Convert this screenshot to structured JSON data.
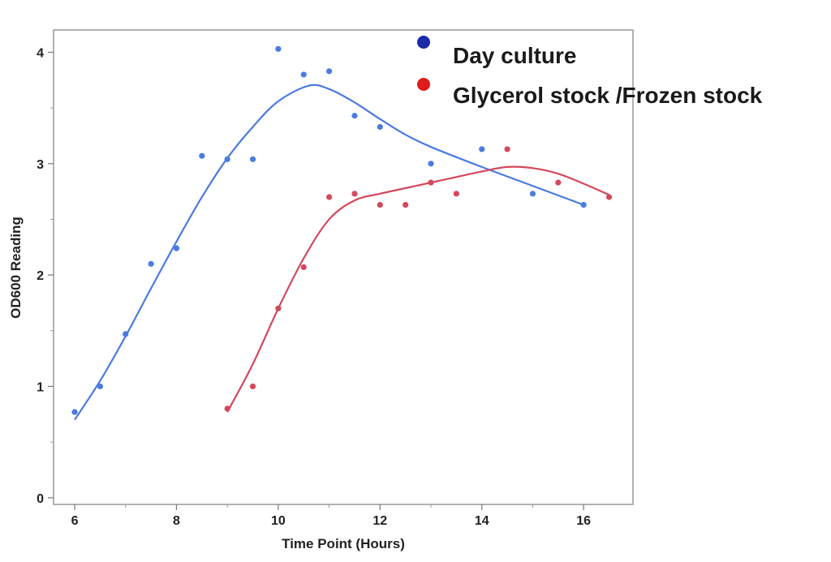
{
  "chart_data": {
    "type": "scatter",
    "title": "",
    "xlabel": "Time Point (Hours)",
    "ylabel": "OD600 Reading",
    "xlim": [
      5.585,
      16.97
    ],
    "ylim": [
      -0.06,
      4.2
    ],
    "xticks": [
      6,
      8,
      10,
      12,
      14,
      16
    ],
    "xminor": [
      7,
      9,
      11,
      13,
      15
    ],
    "yticks": [
      0,
      1,
      2,
      3,
      4
    ],
    "yminor": [
      0.5,
      1.5,
      2.5,
      3.5
    ],
    "grid": false,
    "legend_placement": "top-right",
    "series": [
      {
        "name": "Day culture",
        "legend_color": "#1a2aa8",
        "color": "#4a7be0",
        "points": [
          [
            6,
            0.77
          ],
          [
            6.5,
            1.0
          ],
          [
            7,
            1.47
          ],
          [
            7.5,
            2.1
          ],
          [
            8,
            2.24
          ],
          [
            8.5,
            3.07
          ],
          [
            9,
            3.04
          ],
          [
            9.5,
            3.04
          ],
          [
            10,
            4.03
          ],
          [
            10.5,
            3.8
          ],
          [
            11,
            3.83
          ],
          [
            11.5,
            3.43
          ],
          [
            12,
            3.33
          ],
          [
            13,
            3.0
          ],
          [
            14,
            3.13
          ],
          [
            15,
            2.73
          ],
          [
            16,
            2.63
          ]
        ],
        "fit": [
          [
            6,
            0.7
          ],
          [
            6.5,
            1.05
          ],
          [
            7,
            1.45
          ],
          [
            7.5,
            1.88
          ],
          [
            8,
            2.3
          ],
          [
            8.5,
            2.7
          ],
          [
            9,
            3.05
          ],
          [
            9.5,
            3.33
          ],
          [
            10,
            3.56
          ],
          [
            10.6,
            3.7
          ],
          [
            11,
            3.67
          ],
          [
            11.5,
            3.55
          ],
          [
            12,
            3.4
          ],
          [
            12.5,
            3.26
          ],
          [
            13,
            3.15
          ],
          [
            14,
            2.97
          ],
          [
            15,
            2.8
          ],
          [
            16,
            2.63
          ]
        ]
      },
      {
        "name": "Glycerol stock /Frozen stock",
        "legend_color": "#e01b1b",
        "color": "#d4485c",
        "points": [
          [
            9,
            0.8
          ],
          [
            9.5,
            1.0
          ],
          [
            10,
            1.7
          ],
          [
            10.5,
            2.07
          ],
          [
            11,
            2.7
          ],
          [
            11.5,
            2.73
          ],
          [
            12,
            2.63
          ],
          [
            12.5,
            2.63
          ],
          [
            13,
            2.83
          ],
          [
            13.5,
            2.73
          ],
          [
            14.5,
            3.13
          ],
          [
            15.5,
            2.83
          ],
          [
            16.5,
            2.7
          ]
        ],
        "fit": [
          [
            9,
            0.77
          ],
          [
            9.5,
            1.2
          ],
          [
            10,
            1.7
          ],
          [
            10.5,
            2.15
          ],
          [
            11,
            2.5
          ],
          [
            11.5,
            2.67
          ],
          [
            12,
            2.73
          ],
          [
            12.5,
            2.78
          ],
          [
            13,
            2.83
          ],
          [
            13.5,
            2.88
          ],
          [
            14,
            2.93
          ],
          [
            14.5,
            2.97
          ],
          [
            15,
            2.96
          ],
          [
            15.5,
            2.91
          ],
          [
            16,
            2.82
          ],
          [
            16.5,
            2.72
          ]
        ]
      }
    ]
  }
}
